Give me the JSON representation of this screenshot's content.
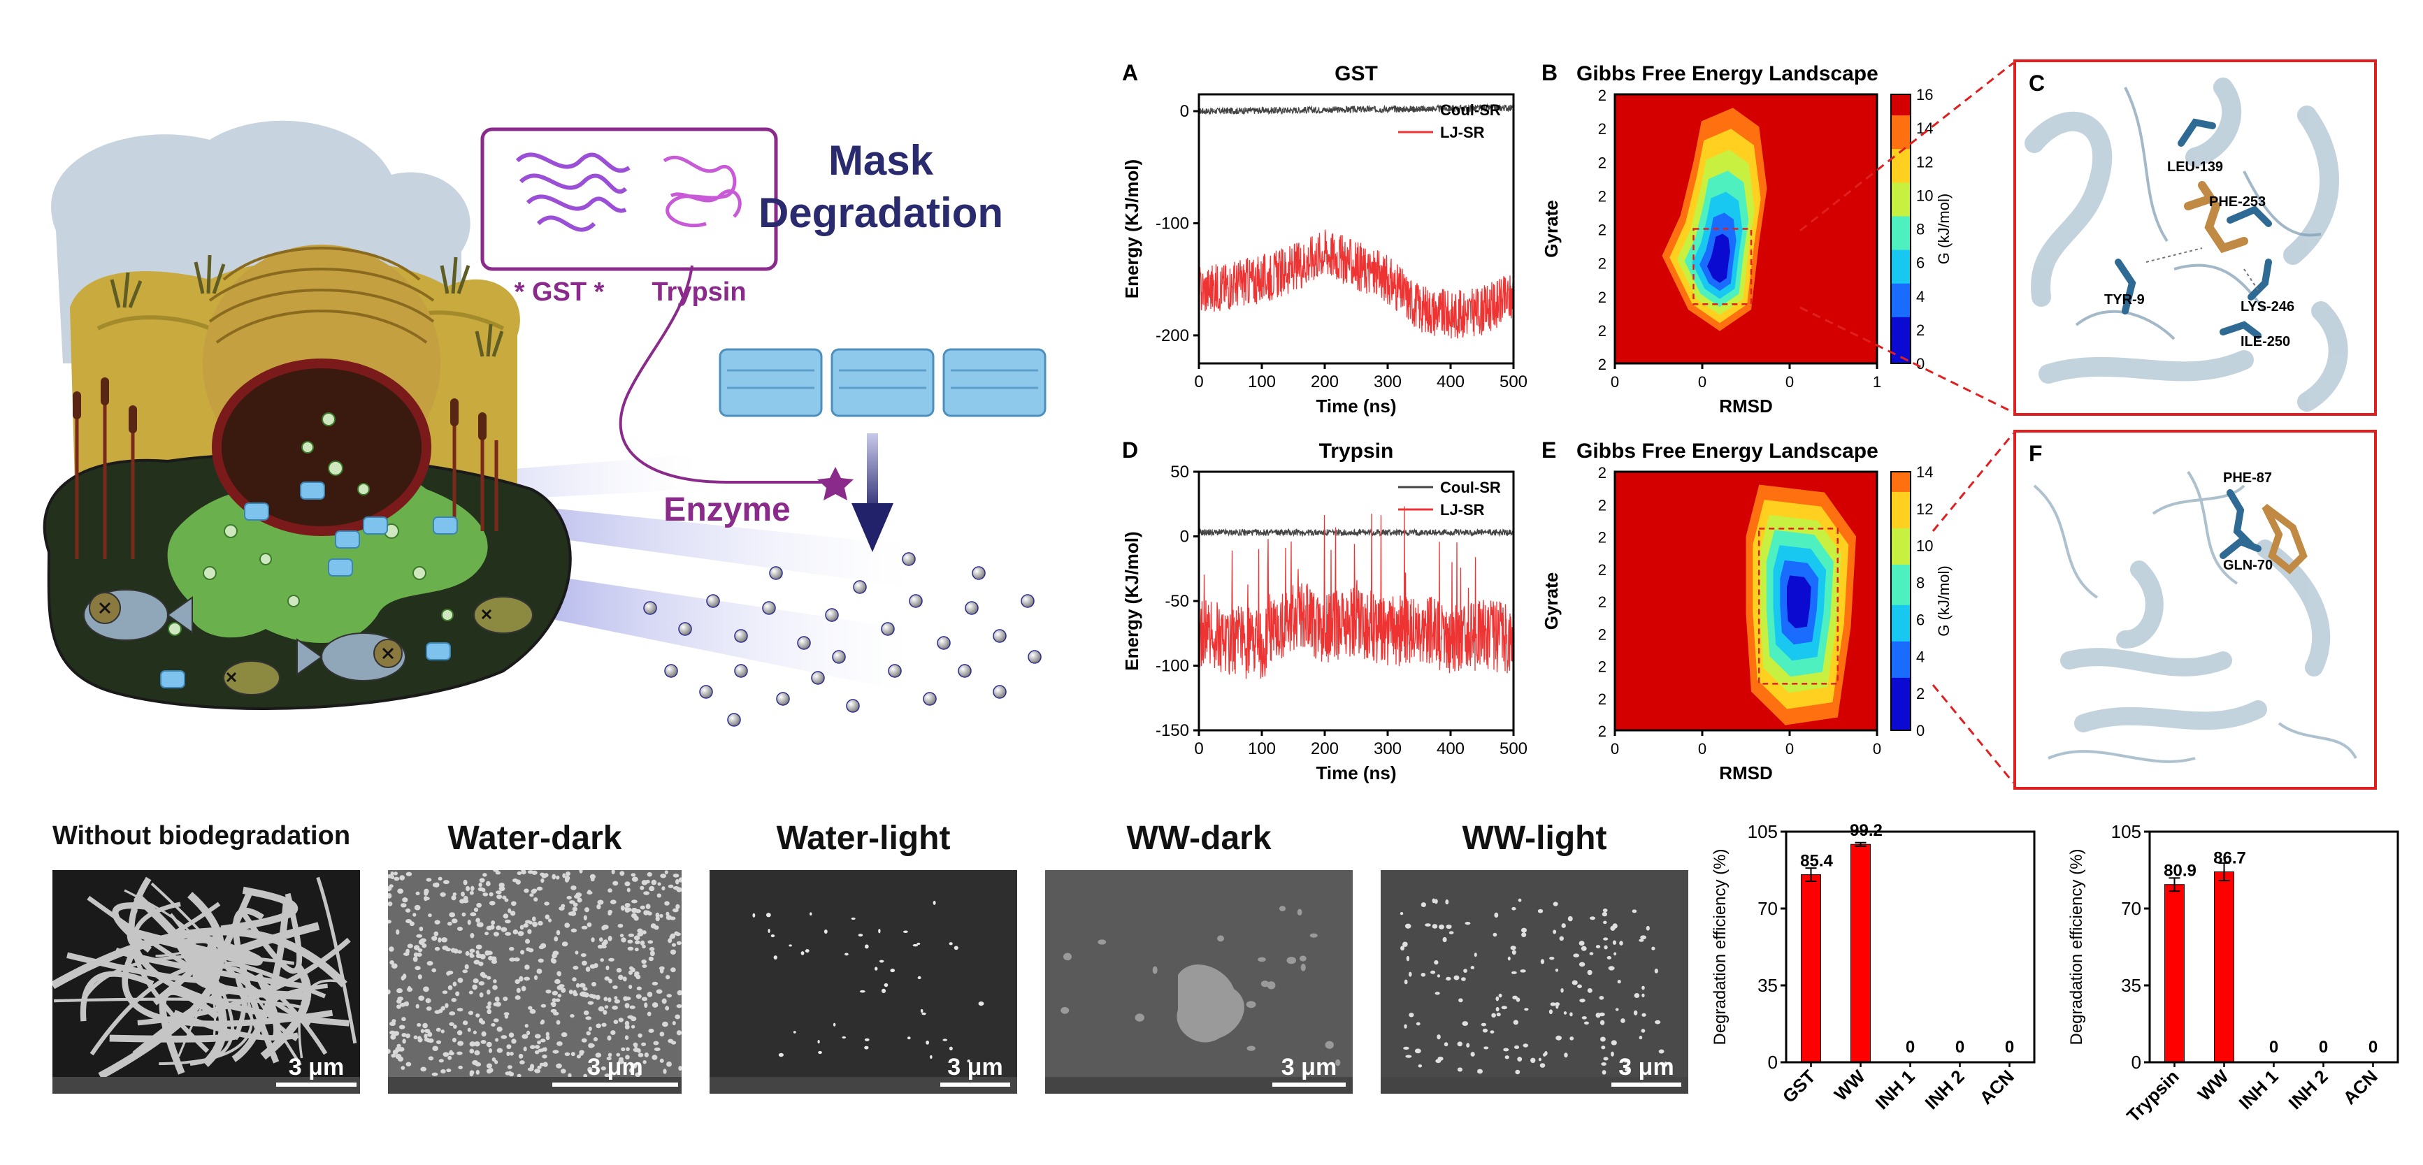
{
  "illustration": {
    "title_line1": "Mask",
    "title_line2": "Degradation",
    "gst_label": "* GST *",
    "trypsin_label": "Trypsin",
    "enzyme_label": "Enzyme",
    "colors": {
      "title": "#2a2a6e",
      "enzyme": "#8a2a8a",
      "water": "#c7d3de",
      "ground": "#c4a640",
      "pond": "#6ab04c",
      "soil": "#24301c",
      "mask": "#8ec9ec"
    }
  },
  "panel_letters": {
    "a": "A",
    "b": "B",
    "c": "C",
    "d": "D",
    "e": "E",
    "f": "F"
  },
  "chart_data": [
    {
      "id": "A",
      "type": "line",
      "title": "GST",
      "xlabel": "Time (ns)",
      "ylabel": "Energy (KJ/mol)",
      "xlim": [
        0,
        500
      ],
      "ylim": [
        -225,
        15
      ],
      "xticks": [
        "0",
        "100",
        "200",
        "300",
        "400",
        "500"
      ],
      "yticks": [
        "0",
        "-100",
        "-200"
      ],
      "ytick_values": [
        0,
        -100,
        -200
      ],
      "legend": "top-right",
      "series": [
        {
          "name": "Coul-SR",
          "color": "#444444",
          "mean": [
            [
              0,
              0
            ],
            [
              500,
              3
            ]
          ],
          "noise": 3
        },
        {
          "name": "LJ-SR",
          "color": "#ee3333",
          "mean": [
            [
              0,
              -160
            ],
            [
              100,
              -150
            ],
            [
              150,
              -140
            ],
            [
              200,
              -125
            ],
            [
              260,
              -140
            ],
            [
              300,
              -150
            ],
            [
              350,
              -175
            ],
            [
              400,
              -182
            ],
            [
              450,
              -178
            ],
            [
              500,
              -165
            ]
          ],
          "noise": 22
        }
      ]
    },
    {
      "id": "D",
      "type": "line",
      "title": "Trypsin",
      "xlabel": "Time (ns)",
      "ylabel": "Energy (KJ/mol)",
      "xlim": [
        0,
        500
      ],
      "ylim": [
        -150,
        50
      ],
      "xticks": [
        "0",
        "100",
        "200",
        "300",
        "400",
        "500"
      ],
      "yticks": [
        "50",
        "0",
        "-50",
        "-100",
        "-150"
      ],
      "ytick_values": [
        50,
        0,
        -50,
        -100,
        -150
      ],
      "legend": "top-right",
      "series": [
        {
          "name": "Coul-SR",
          "color": "#444444",
          "mean": [
            [
              0,
              3
            ],
            [
              500,
              3
            ]
          ],
          "noise": 2.5
        },
        {
          "name": "LJ-SR",
          "color": "#ee3333",
          "mean": [
            [
              0,
              -75
            ],
            [
              100,
              -85
            ],
            [
              150,
              -60
            ],
            [
              200,
              -70
            ],
            [
              250,
              -65
            ],
            [
              300,
              -75
            ],
            [
              350,
              -70
            ],
            [
              400,
              -80
            ],
            [
              450,
              -75
            ],
            [
              500,
              -80
            ]
          ],
          "noise": 28
        }
      ]
    },
    {
      "id": "B",
      "type": "heatmap",
      "title": "Gibbs Free Energy Landscape",
      "xlabel": "RMSD",
      "ylabel": "Gyrate",
      "xticks": [
        "0",
        "0",
        "0",
        "1"
      ],
      "yticks": [
        "2",
        "2",
        "2",
        "2",
        "2",
        "2",
        "2",
        "2",
        "2"
      ],
      "colorbar_label": "G (kJ/mol)",
      "colorbar_ticks": [
        "16",
        "14",
        "12",
        "10",
        "8",
        "6",
        "4",
        "2",
        "0"
      ]
    },
    {
      "id": "E",
      "type": "heatmap",
      "title": "Gibbs Free Energy Landscape",
      "xlabel": "RMSD",
      "ylabel": "Gyrate",
      "xticks": [
        "0",
        "0",
        "0",
        "0"
      ],
      "yticks": [
        "2",
        "2",
        "2",
        "2",
        "2",
        "2",
        "2",
        "2",
        "2"
      ],
      "colorbar_label": "G (kJ/mol)",
      "colorbar_ticks": [
        "14",
        "12",
        "10",
        "8",
        "6",
        "4",
        "2",
        "0"
      ]
    },
    {
      "id": "G",
      "type": "bar",
      "ylabel": "Degradation efficiency (%)",
      "ylim": [
        0,
        105
      ],
      "yticks": [
        "0",
        "35",
        "70",
        "105"
      ],
      "ytick_values": [
        0,
        35,
        70,
        105
      ],
      "categories": [
        "GST",
        "WW",
        "INH 1",
        "INH 2",
        "ACN"
      ],
      "values": [
        85.4,
        99.2,
        0,
        0,
        0
      ],
      "errors": [
        3.0,
        0.8,
        0,
        0,
        0
      ],
      "labels": [
        "85.4",
        "99.2",
        "0",
        "0",
        "0"
      ],
      "bar_color": "#ff0000"
    },
    {
      "id": "H",
      "type": "bar",
      "ylabel": "Degradation efficiency (%)",
      "ylim": [
        0,
        105
      ],
      "yticks": [
        "0",
        "35",
        "70",
        "105"
      ],
      "ytick_values": [
        0,
        35,
        70,
        105
      ],
      "categories": [
        "Trypsin",
        "WW",
        "INH 1",
        "INH 2",
        "ACN"
      ],
      "values": [
        80.9,
        86.7,
        0,
        0,
        0
      ],
      "errors": [
        3.0,
        4.0,
        0,
        0,
        0
      ],
      "labels": [
        "80.9",
        "86.7",
        "0",
        "0",
        "0"
      ],
      "bar_color": "#ff0000"
    }
  ],
  "structures": {
    "c_residues": [
      "LEU-139",
      "PHE-253",
      "TYR-9",
      "LYS-246",
      "ILE-250"
    ],
    "f_residues": [
      "PHE-87",
      "GLN-70"
    ]
  },
  "sem": [
    {
      "title": "Without biodegradation",
      "scale": "3 μm"
    },
    {
      "title": "Water-dark",
      "scale": "3 μm"
    },
    {
      "title": "Water-light",
      "scale": "3 μm"
    },
    {
      "title": "WW-dark",
      "scale": "3 μm"
    },
    {
      "title": "WW-light",
      "scale": "3 μm"
    }
  ]
}
